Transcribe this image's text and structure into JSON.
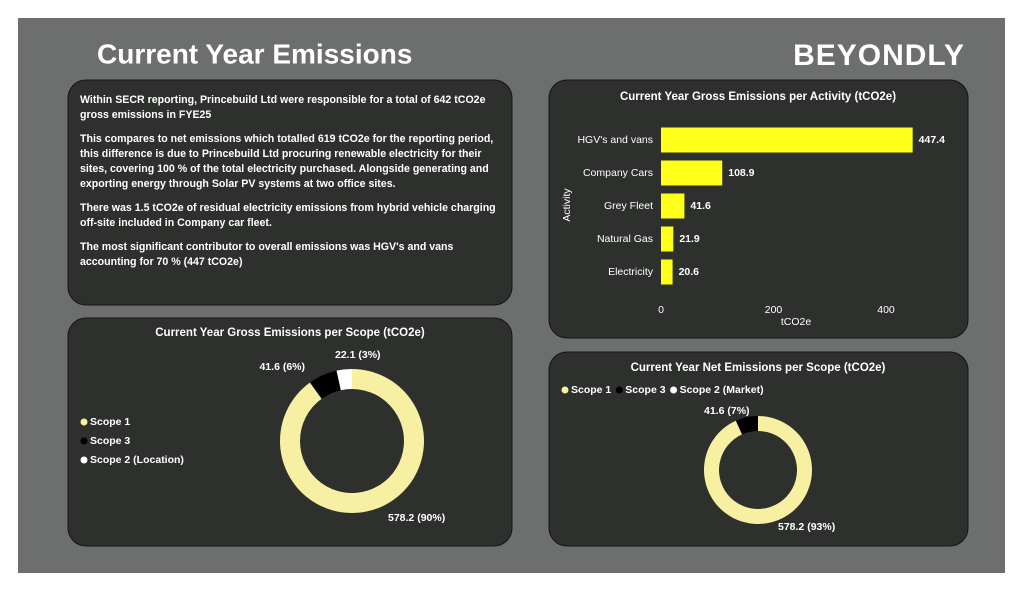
{
  "header": {
    "title": "Current Year Emissions",
    "logo": "BEYONDLY"
  },
  "summary": {
    "paragraphs": [
      "Within SECR reporting, Princebuild Ltd were responsible for a total of 642 tCO2e gross emissions in FYE25",
      "This compares to net emissions which totalled 619 tCO2e for the reporting period, this difference is due to Princebuild Ltd procuring renewable electricity for their sites, covering 100 % of the total electricity purchased. Alongside generating and exporting energy through Solar PV systems at two office sites.",
      "There was 1.5 tCO2e of residual electricity emissions from hybrid vehicle charging off-site included in Company car fleet.",
      "The most significant contributor to overall emissions was HGV's and vans accounting for 70 % (447 tCO2e)"
    ]
  },
  "chart_data": [
    {
      "type": "bar",
      "orientation": "horizontal",
      "title": "Current Year Gross Emissions per Activity (tCO2e)",
      "categories": [
        "HGV's and vans",
        "Company Cars",
        "Grey Fleet",
        "Natural Gas",
        "Electricity"
      ],
      "values": [
        447.4,
        108.9,
        41.6,
        21.9,
        20.6
      ],
      "color": "#ffff1a",
      "xlim": [
        0,
        480
      ],
      "xticks": [
        0,
        200,
        400
      ],
      "xlabel": "tCO2e",
      "ylabel": "Activity"
    },
    {
      "type": "donut",
      "title": "Current Year Gross Emissions per Scope (tCO2e)",
      "categories": [
        "Scope 1",
        "Scope 3",
        "Scope 2 (Location)"
      ],
      "values": [
        578.2,
        41.6,
        22.1
      ],
      "value_labels": [
        "578.2 (90%)",
        "41.6 (6%)",
        "22.1 (3%)"
      ],
      "colors": [
        "#f7f0a3",
        "#000000",
        "#ffffff"
      ],
      "legend": "left"
    },
    {
      "type": "donut",
      "title": "Current Year Net Emissions per Scope (tCO2e)",
      "categories": [
        "Scope 1",
        "Scope 3",
        "Scope 2  (Market)"
      ],
      "values": [
        578.2,
        41.6,
        0
      ],
      "value_labels": [
        "578.2 (93%)",
        "41.6 (7%)",
        null
      ],
      "colors": [
        "#f7f0a3",
        "#000000",
        "#ffffff"
      ],
      "legend": "top"
    }
  ]
}
